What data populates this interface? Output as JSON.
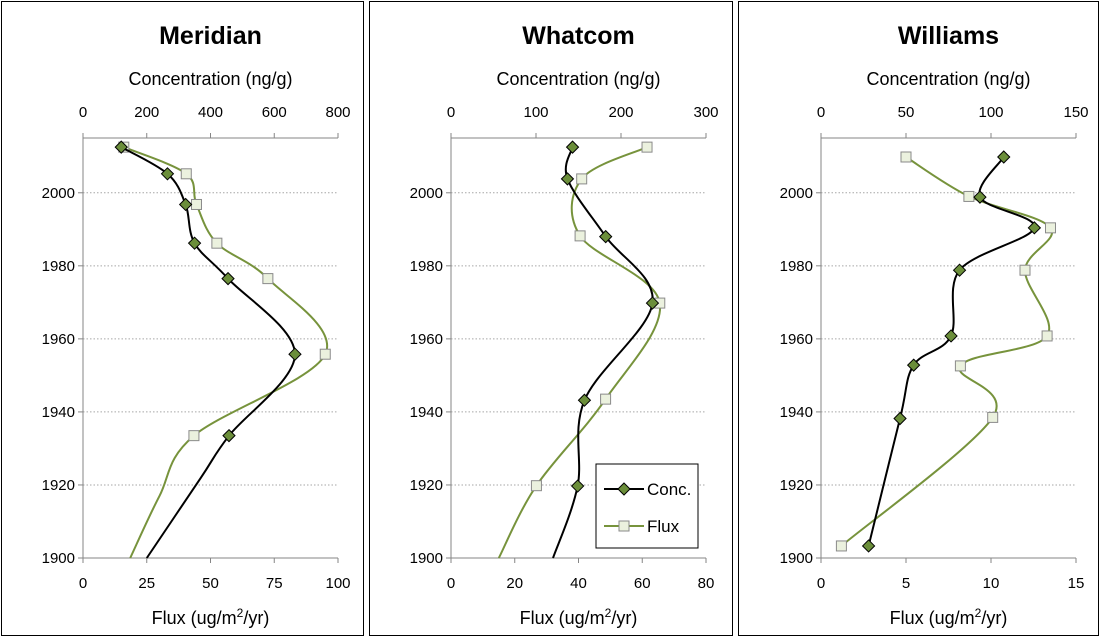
{
  "chart_data": [
    {
      "type": "line",
      "title": "Meridian",
      "top_axis_label": "Concentration (ng/g)",
      "bottom_axis_label_main": "Flux (ug/m",
      "bottom_axis_label_sup": "2",
      "bottom_axis_label_tail": "/yr)",
      "top_axis": {
        "min": 0,
        "max": 800,
        "ticks": [
          "0",
          "200",
          "400",
          "600",
          "800"
        ]
      },
      "bottom_axis": {
        "min": 0,
        "max": 100,
        "ticks": [
          "0",
          "25",
          "50",
          "75",
          "100"
        ]
      },
      "y_axis": {
        "min": 1900,
        "max": 2015,
        "ticks": [
          "1900",
          "1920",
          "1940",
          "1960",
          "1980",
          "2000"
        ],
        "grid": true
      },
      "series": [
        {
          "name": "Conc.",
          "axis": "top",
          "color": "#000000",
          "marker_fill": "#6b8e3a",
          "marker": "diamond",
          "points": [
            [
              120,
              2012.5
            ],
            [
              265,
              2005.2
            ],
            [
              322,
              1996.8
            ],
            [
              350,
              1986.2
            ],
            [
              455,
              1976.5
            ],
            [
              665,
              1955.8
            ],
            [
              458,
              1933.5
            ]
          ],
          "tail": [
            [
              370,
              1922
            ],
            [
              200,
              1900
            ]
          ]
        },
        {
          "name": "Flux",
          "axis": "bottom",
          "color": "#77933c",
          "marker_fill": "#ebf1de",
          "marker": "square",
          "points": [
            [
              16,
              2012.5
            ],
            [
              40.5,
              2005.2
            ],
            [
              44.5,
              1996.8
            ],
            [
              52.5,
              1986.2
            ],
            [
              72.5,
              1976.5
            ],
            [
              95,
              1955.8
            ],
            [
              43.5,
              1933.5
            ]
          ],
          "tail": [
            [
              30,
              1917
            ],
            [
              18.5,
              1900
            ]
          ]
        }
      ]
    },
    {
      "type": "line",
      "title": "Whatcom",
      "top_axis_label": "Concentration (ng/g)",
      "bottom_axis_label_main": "Flux (ug/m",
      "bottom_axis_label_sup": "2",
      "bottom_axis_label_tail": "/yr)",
      "top_axis": {
        "min": 0,
        "max": 300,
        "ticks": [
          "0",
          "100",
          "200",
          "300"
        ]
      },
      "bottom_axis": {
        "min": 0,
        "max": 80,
        "ticks": [
          "0",
          "20",
          "40",
          "60",
          "80"
        ]
      },
      "y_axis": {
        "min": 1900,
        "max": 2015,
        "ticks": [
          "1900",
          "1920",
          "1940",
          "1960",
          "1980",
          "2000"
        ],
        "grid": true
      },
      "legend": {
        "position": "bottom-right",
        "entries": [
          "Conc.",
          "Flux"
        ]
      },
      "series": [
        {
          "name": "Conc.",
          "axis": "top",
          "color": "#000000",
          "marker_fill": "#6b8e3a",
          "marker": "diamond",
          "points": [
            [
              143,
              2012.5
            ],
            [
              137,
              2003.8
            ],
            [
              182,
              1988.0
            ],
            [
              237,
              1969.8
            ],
            [
              157,
              1943.2
            ],
            [
              149,
              1919.7
            ]
          ],
          "tail": [
            [
              120,
              1900
            ]
          ]
        },
        {
          "name": "Flux",
          "axis": "bottom",
          "color": "#77933c",
          "marker_fill": "#ebf1de",
          "marker": "square",
          "points": [
            [
              61.5,
              2012.5
            ],
            [
              41,
              2003.8
            ],
            [
              40.5,
              1988.2
            ],
            [
              65.5,
              1969.8
            ],
            [
              48.5,
              1943.5
            ],
            [
              26.8,
              1919.8
            ]
          ],
          "tail": [
            [
              15,
              1900
            ]
          ]
        }
      ]
    },
    {
      "type": "line",
      "title": "Williams",
      "top_axis_label": "Concentration (ng/g)",
      "bottom_axis_label_main": "Flux (ug/m",
      "bottom_axis_label_sup": "2",
      "bottom_axis_label_tail": "/yr)",
      "top_axis": {
        "min": 0,
        "max": 150,
        "ticks": [
          "0",
          "50",
          "100",
          "150"
        ]
      },
      "bottom_axis": {
        "min": 0,
        "max": 15,
        "ticks": [
          "0",
          "5",
          "10",
          "15"
        ]
      },
      "y_axis": {
        "min": 1900,
        "max": 2015,
        "ticks": [
          "1900",
          "1920",
          "1940",
          "1960",
          "1980",
          "2000"
        ],
        "grid": true
      },
      "series": [
        {
          "name": "Conc.",
          "axis": "top",
          "color": "#000000",
          "marker_fill": "#6b8e3a",
          "marker": "diamond",
          "points": [
            [
              107.5,
              2009.8
            ],
            [
              93.5,
              1998.8
            ],
            [
              125.5,
              1990.4
            ],
            [
              81.5,
              1978.8
            ],
            [
              76.5,
              1960.8
            ],
            [
              54.5,
              1952.8
            ],
            [
              46.5,
              1938.2
            ],
            [
              28,
              1903.3
            ]
          ]
        },
        {
          "name": "Flux",
          "axis": "bottom",
          "color": "#77933c",
          "marker_fill": "#ebf1de",
          "marker": "square",
          "points": [
            [
              5.0,
              2009.8
            ],
            [
              8.7,
              1999.0
            ],
            [
              13.5,
              1990.4
            ],
            [
              12.0,
              1978.8
            ],
            [
              13.3,
              1960.8
            ],
            [
              8.2,
              1952.6
            ],
            [
              10.1,
              1938.5
            ],
            [
              1.2,
              1903.3
            ]
          ]
        }
      ]
    }
  ]
}
